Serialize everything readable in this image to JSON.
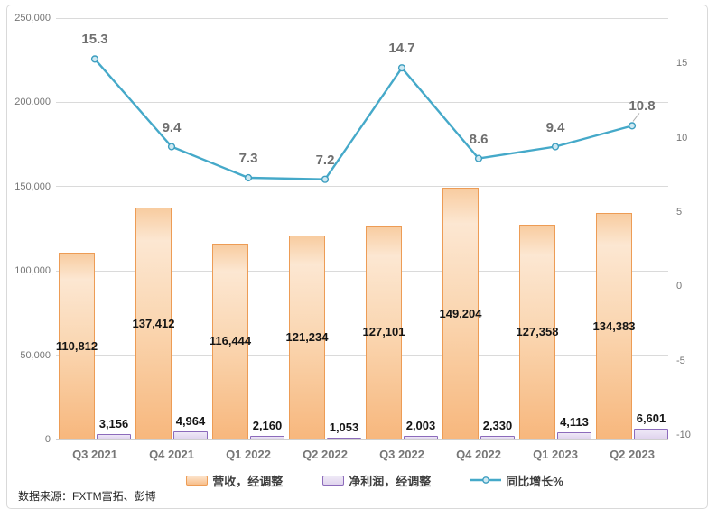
{
  "chart_data": {
    "type": "combo-bar-line",
    "categories": [
      "Q3 2021",
      "Q4 2021",
      "Q1 2022",
      "Q2 2022",
      "Q3 2022",
      "Q4 2022",
      "Q1 2023",
      "Q2 2023"
    ],
    "series": [
      {
        "name": "营收，经调整",
        "type": "bar",
        "axis": "primary",
        "values": [
          110812,
          137412,
          116444,
          121234,
          127101,
          149204,
          127358,
          134383
        ],
        "labels": [
          "110,812",
          "137,412",
          "116,444",
          "121,234",
          "127,101",
          "149,204",
          "127,358",
          "134,383"
        ]
      },
      {
        "name": "净利润，经调整",
        "type": "bar",
        "axis": "primary",
        "values": [
          3156,
          4964,
          2160,
          1053,
          2003,
          2330,
          4113,
          6601
        ],
        "labels": [
          "3,156",
          "4,964",
          "2,160",
          "1,053",
          "2,003",
          "2,330",
          "4,113",
          "6,601"
        ]
      },
      {
        "name": "同比增长%",
        "type": "line",
        "axis": "secondary",
        "values": [
          15.3,
          9.4,
          7.3,
          7.2,
          14.7,
          8.6,
          9.4,
          10.8
        ],
        "labels": [
          "15.3",
          "9.4",
          "7.3",
          "7.2",
          "14.7",
          "8.6",
          "9.4",
          "10.8"
        ]
      }
    ],
    "primary_axis": {
      "min": 0,
      "max": 250000,
      "tick_values": [
        250000,
        200000,
        150000,
        100000,
        50000,
        0
      ],
      "tick_labels": [
        "250,000",
        "200,000",
        "150,000",
        "100,000",
        "50,000",
        "0"
      ]
    },
    "secondary_axis": {
      "tick_values": [
        15,
        10,
        5,
        0,
        -5,
        -10
      ],
      "tick_labels": [
        "15",
        "10",
        "5",
        "0",
        "-5",
        "-10"
      ]
    },
    "legend_position": "bottom",
    "grid": true
  },
  "source_note": "数据来源：FXTM富拓、彭博",
  "colors": {
    "revenue_border": "#ED9C55",
    "revenue_fill_top": "#FCE7D2",
    "revenue_fill_bottom": "#F7B77D",
    "profit_fill": "#E3D8F0",
    "profit_border": "#8C6BBB",
    "growth_line": "#45A9C9",
    "growth_marker_fill": "#CFE9F2",
    "gridline": "#DADADA",
    "axis_text": "#767676",
    "data_label": "#141414",
    "growth_label": "#6F6F6F"
  }
}
